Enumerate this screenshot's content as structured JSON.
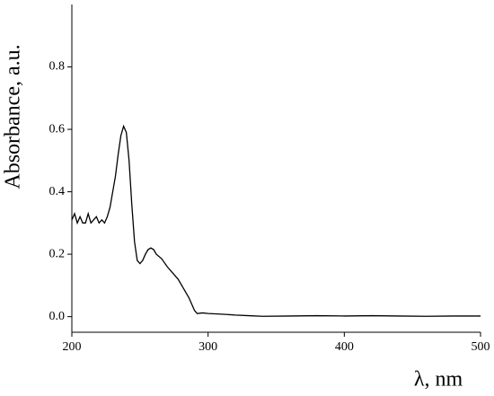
{
  "chart_data": {
    "type": "line",
    "xlabel": "λ, nm",
    "ylabel": "Absorbance, a.u.",
    "x": [
      200,
      202,
      204,
      206,
      208,
      210,
      212,
      214,
      216,
      218,
      220,
      222,
      224,
      226,
      228,
      230,
      232,
      234,
      236,
      238,
      240,
      242,
      244,
      246,
      248,
      250,
      252,
      254,
      256,
      258,
      260,
      262,
      266,
      270,
      274,
      278,
      282,
      286,
      290,
      292,
      296,
      300,
      310,
      320,
      330,
      340,
      360,
      380,
      400,
      420,
      440,
      460,
      480,
      500
    ],
    "values": [
      0.31,
      0.33,
      0.3,
      0.32,
      0.3,
      0.3,
      0.33,
      0.3,
      0.31,
      0.32,
      0.3,
      0.31,
      0.3,
      0.32,
      0.35,
      0.4,
      0.45,
      0.52,
      0.58,
      0.61,
      0.59,
      0.5,
      0.36,
      0.24,
      0.18,
      0.17,
      0.18,
      0.2,
      0.215,
      0.22,
      0.215,
      0.2,
      0.185,
      0.16,
      0.14,
      0.12,
      0.09,
      0.06,
      0.02,
      0.01,
      0.012,
      0.01,
      0.008,
      0.005,
      0.003,
      0.001,
      0.002,
      0.003,
      0.002,
      0.003,
      0.002,
      0.001,
      0.002,
      0.002
    ],
    "color": "#000000",
    "xlim": [
      200,
      500
    ],
    "xticks": [
      200,
      300,
      400,
      500
    ],
    "ylim": [
      -0.05,
      1.0
    ],
    "yticks": [
      {
        "value": 0,
        "label": "0.0"
      },
      0.2,
      0.4,
      0.6,
      0.8
    ]
  }
}
